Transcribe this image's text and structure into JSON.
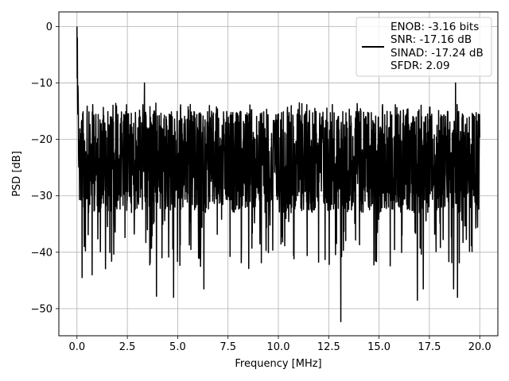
{
  "chart_data": {
    "type": "line",
    "xlabel": "Frequency [MHz]",
    "ylabel": "PSD [dB]",
    "xlim": [
      -0.9,
      20.9
    ],
    "ylim": [
      -54.8,
      2.6
    ],
    "xticks": [
      0.0,
      2.5,
      5.0,
      7.5,
      10.0,
      12.5,
      15.0,
      17.5,
      20.0
    ],
    "xtick_labels": [
      "0.0",
      "2.5",
      "5.0",
      "7.5",
      "10.0",
      "12.5",
      "15.0",
      "17.5",
      "20.0"
    ],
    "yticks": [
      0,
      -10,
      -20,
      -30,
      -40,
      -50
    ],
    "ytick_labels": [
      "0",
      "−10",
      "−20",
      "−30",
      "−40",
      "−50"
    ],
    "grid": true,
    "legend_position": "top-right",
    "legend_lines": [
      "ENOB: -3.16 bits",
      "SNR: -17.16 dB",
      "SINAD: -17.24 dB",
      "SFDR: 2.09"
    ],
    "series": [
      {
        "line_color": "#000000",
        "x_range": [
          0.0,
          20.0
        ],
        "points": 2048,
        "noise_floor_mean_db": -22,
        "upper_envelope_db": -15,
        "lower_envelope_db": -33,
        "peak_max_db": 0.0,
        "notable_points": [
          {
            "x": 0.0,
            "y": 0.0
          },
          {
            "x": 0.02,
            "y": -2.0
          },
          {
            "x": 0.05,
            "y": -10.5
          },
          {
            "x": 0.25,
            "y": -44.5
          },
          {
            "x": 0.75,
            "y": -44.0
          },
          {
            "x": 3.35,
            "y": -10.0
          },
          {
            "x": 3.95,
            "y": -47.8
          },
          {
            "x": 4.8,
            "y": -48.0
          },
          {
            "x": 6.3,
            "y": -46.5
          },
          {
            "x": 13.1,
            "y": -52.3
          },
          {
            "x": 16.9,
            "y": -48.5
          },
          {
            "x": 17.2,
            "y": -46.5
          },
          {
            "x": 18.7,
            "y": -46.5
          },
          {
            "x": 18.9,
            "y": -48.0
          },
          {
            "x": 18.8,
            "y": -10.0
          }
        ]
      }
    ]
  }
}
